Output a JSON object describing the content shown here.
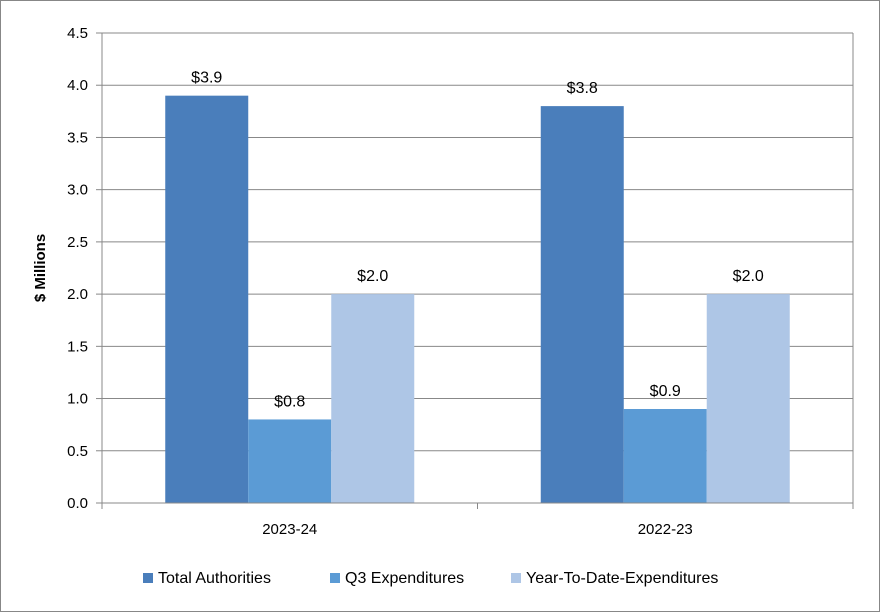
{
  "chart_data": {
    "type": "bar",
    "categories": [
      "2023-24",
      "2022-23"
    ],
    "series": [
      {
        "name": "Total Authorities",
        "values": [
          3.9,
          3.8
        ],
        "labels": [
          "$3.9",
          "$3.8"
        ],
        "color": "#4A7EBB"
      },
      {
        "name": "Q3 Expenditures",
        "values": [
          0.8,
          0.9
        ],
        "labels": [
          "$0.8",
          "$0.9"
        ],
        "color": "#5B9BD5"
      },
      {
        "name": "Year-To-Date-Expenditures",
        "values": [
          2.0,
          2.0
        ],
        "labels": [
          "$2.0",
          "$2.0"
        ],
        "color": "#AEC6E6"
      }
    ],
    "ylabel": "$ Millions",
    "xlabel": "",
    "ylim": [
      0,
      4.5
    ],
    "yticks": [
      "0.0",
      "0.5",
      "1.0",
      "1.5",
      "2.0",
      "2.5",
      "3.0",
      "3.5",
      "4.0",
      "4.5"
    ],
    "grid": true,
    "legend_position": "bottom"
  }
}
